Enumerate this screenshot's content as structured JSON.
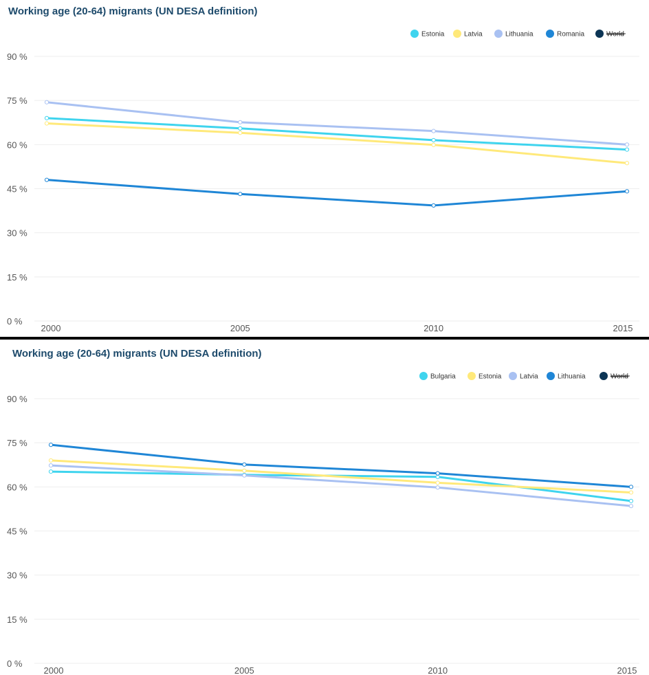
{
  "chart_data": [
    {
      "type": "line",
      "title": "Working age (20-64) migrants (UN DESA definition)",
      "xlabel": "",
      "ylabel": "",
      "x": [
        2000,
        2005,
        2010,
        2015
      ],
      "ylim": [
        0,
        90
      ],
      "yticks": [
        0,
        15,
        30,
        45,
        60,
        75,
        90
      ],
      "ytick_labels": [
        "0 %",
        "15 %",
        "30 %",
        "45 %",
        "60 %",
        "75 %",
        "90 %"
      ],
      "xtick_labels": [
        "2000",
        "2005",
        "2010",
        "2015"
      ],
      "grid": true,
      "legend_position": "top-right",
      "legend": [
        "Estonia",
        "Latvia",
        "Lithuania",
        "Romania",
        "World"
      ],
      "legend_colors": [
        "#3fd4ee",
        "#ffe97a",
        "#a9c1f2",
        "#1f86d6",
        "#0c3555"
      ],
      "legend_hidden": [
        "World"
      ],
      "series": [
        {
          "name": "Estonia",
          "color": "#3fd4ee",
          "values": [
            69,
            65.5,
            61.5,
            58.3
          ]
        },
        {
          "name": "Latvia",
          "color": "#ffe97a",
          "values": [
            67.2,
            64,
            59.9,
            53.7
          ]
        },
        {
          "name": "Lithuania",
          "color": "#a9c1f2",
          "values": [
            74.4,
            67.6,
            64.6,
            60
          ]
        },
        {
          "name": "Romania",
          "color": "#1f86d6",
          "values": [
            48,
            43.2,
            39.3,
            44.1
          ]
        }
      ]
    },
    {
      "type": "line",
      "title": "Working age (20-64) migrants (UN DESA definition)",
      "xlabel": "",
      "ylabel": "",
      "x": [
        2000,
        2005,
        2010,
        2015
      ],
      "ylim": [
        0,
        90
      ],
      "yticks": [
        0,
        15,
        30,
        45,
        60,
        75,
        90
      ],
      "ytick_labels": [
        "0 %",
        "15 %",
        "30 %",
        "45 %",
        "60 %",
        "75 %",
        "90 %"
      ],
      "xtick_labels": [
        "2000",
        "2005",
        "2010",
        "2015"
      ],
      "grid": true,
      "legend_position": "top-right",
      "legend": [
        "Bulgaria",
        "Estonia",
        "Latvia",
        "Lithuania",
        "World"
      ],
      "legend_colors": [
        "#3fd4ee",
        "#ffe97a",
        "#a9c1f2",
        "#1f86d6",
        "#0c3555"
      ],
      "legend_hidden": [
        "World"
      ],
      "series": [
        {
          "name": "Bulgaria",
          "color": "#3fd4ee",
          "values": [
            65.2,
            64.1,
            63.4,
            55.2
          ]
        },
        {
          "name": "Estonia",
          "color": "#ffe97a",
          "values": [
            69,
            65.5,
            61.4,
            58.1
          ]
        },
        {
          "name": "Latvia",
          "color": "#a9c1f2",
          "values": [
            67.3,
            63.9,
            59.8,
            53.5
          ]
        },
        {
          "name": "Lithuania",
          "color": "#1f86d6",
          "values": [
            74.3,
            67.6,
            64.6,
            60
          ]
        }
      ]
    }
  ]
}
